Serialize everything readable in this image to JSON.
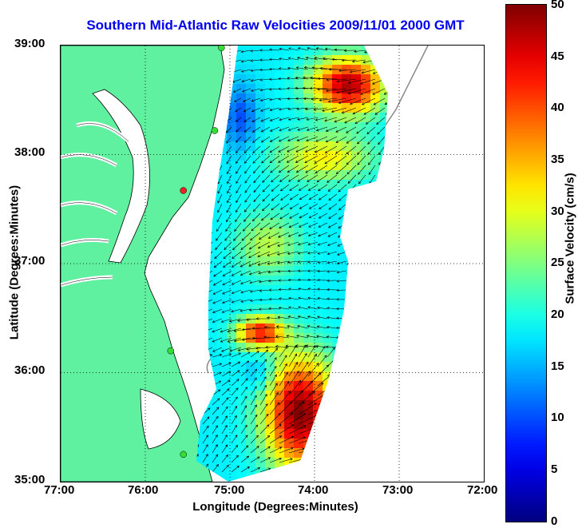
{
  "title": "Southern Mid-Atlantic Raw Velocities 2009/11/01 2000 GMT",
  "x_axis": {
    "label": "Longitude (Degrees:Minutes)",
    "ticks": [
      "77:00",
      "76:00",
      "75:00",
      "74:00",
      "73:00",
      "72:00"
    ]
  },
  "y_axis": {
    "label": "Latitude (Degrees:Minutes)",
    "ticks": [
      "39:00",
      "38:00",
      "37:00",
      "36:00",
      "35:00"
    ]
  },
  "colorbar": {
    "label": "Surface Velocity (cm/s)",
    "ticks": [
      "50",
      "45",
      "40",
      "35",
      "30",
      "25",
      "20",
      "15",
      "10",
      "5",
      "0"
    ],
    "min": 0,
    "max": 50,
    "colormap": "jet"
  },
  "map": {
    "lon_range": [
      -77,
      -72
    ],
    "lat_range": [
      35,
      39
    ],
    "land_color": "#5ff0a0",
    "grid": "dotted",
    "stations": [
      {
        "lon": -75.1,
        "lat": 38.98,
        "color": "#33dd33"
      },
      {
        "lon": -75.18,
        "lat": 38.22,
        "color": "#33dd33"
      },
      {
        "lon": -75.55,
        "lat": 37.67,
        "color": "#ee2222"
      },
      {
        "lon": -75.7,
        "lat": 36.2,
        "color": "#33dd33"
      },
      {
        "lon": -75.55,
        "lat": 35.25,
        "color": "#33dd33"
      }
    ]
  }
}
